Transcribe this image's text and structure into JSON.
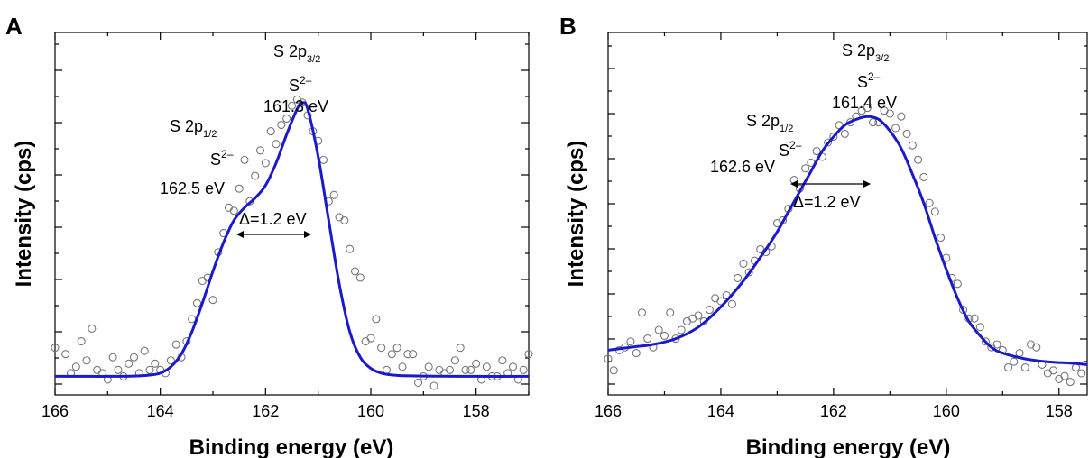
{
  "chart_data": [
    {
      "panel": "A",
      "type": "scatter",
      "xlabel": "Binding energy (eV)",
      "ylabel": "Intensity (cps)",
      "xlim": [
        166,
        157
      ],
      "x_reversed": true,
      "ylim": [
        0,
        1
      ],
      "x_ticks": [
        166,
        164,
        162,
        160,
        158
      ],
      "y_tick_labels": "none",
      "grid": false,
      "series": [
        {
          "kind": "points",
          "marker": "open-circle",
          "color": "#777777",
          "x": [
            166.0,
            165.8,
            165.7,
            165.6,
            165.5,
            165.4,
            165.3,
            165.2,
            165.1,
            165.0,
            164.9,
            164.8,
            164.7,
            164.6,
            164.5,
            164.4,
            164.3,
            164.2,
            164.1,
            164.0,
            163.9,
            163.8,
            163.7,
            163.6,
            163.5,
            163.4,
            163.3,
            163.2,
            163.1,
            163.0,
            162.9,
            162.8,
            162.7,
            162.6,
            162.5,
            162.4,
            162.3,
            162.2,
            162.1,
            162.0,
            161.9,
            161.8,
            161.7,
            161.6,
            161.5,
            161.4,
            161.3,
            161.2,
            161.1,
            161.0,
            160.9,
            160.8,
            160.7,
            160.6,
            160.5,
            160.4,
            160.3,
            160.2,
            160.1,
            160.0,
            159.9,
            159.8,
            159.7,
            159.6,
            159.5,
            159.4,
            159.3,
            159.2,
            159.1,
            159.0,
            158.9,
            158.8,
            158.7,
            158.6,
            158.5,
            158.4,
            158.3,
            158.2,
            158.1,
            158.0,
            157.9,
            157.8,
            157.7,
            157.6,
            157.5,
            157.4,
            157.3,
            157.2,
            157.1,
            157.0
          ],
          "y": [
            0.12,
            0.1,
            0.04,
            0.06,
            0.14,
            0.08,
            0.18,
            0.05,
            0.04,
            0.02,
            0.09,
            0.05,
            0.03,
            0.07,
            0.09,
            0.04,
            0.11,
            0.05,
            0.07,
            0.05,
            0.04,
            0.08,
            0.13,
            0.09,
            0.14,
            0.21,
            0.26,
            0.33,
            0.34,
            0.27,
            0.42,
            0.48,
            0.56,
            0.55,
            0.62,
            0.71,
            0.58,
            0.66,
            0.74,
            0.7,
            0.8,
            0.76,
            0.82,
            0.84,
            0.88,
            0.9,
            0.89,
            0.85,
            0.8,
            0.77,
            0.71,
            0.58,
            0.6,
            0.53,
            0.52,
            0.43,
            0.36,
            0.34,
            0.14,
            0.15,
            0.21,
            0.12,
            0.05,
            0.1,
            0.12,
            0.06,
            0.1,
            0.1,
            0.01,
            0.03,
            0.06,
            0.0,
            0.05,
            0.04,
            0.05,
            0.08,
            0.12,
            0.05,
            0.05,
            0.07,
            0.02,
            0.06,
            0.03,
            0.03,
            0.08,
            0.04,
            0.06,
            0.02,
            0.05,
            0.1
          ]
        },
        {
          "kind": "fit-line",
          "color": "#1a1acc",
          "x": [
            166.0,
            165.5,
            165.0,
            164.5,
            164.2,
            164.0,
            163.8,
            163.6,
            163.4,
            163.2,
            163.0,
            162.8,
            162.6,
            162.4,
            162.2,
            162.0,
            161.8,
            161.6,
            161.4,
            161.3,
            161.2,
            161.0,
            160.8,
            160.6,
            160.4,
            160.2,
            160.0,
            159.8,
            159.5,
            159.0,
            158.0,
            157.0
          ],
          "y": [
            0.03,
            0.03,
            0.03,
            0.031,
            0.034,
            0.04,
            0.06,
            0.1,
            0.17,
            0.26,
            0.36,
            0.45,
            0.52,
            0.56,
            0.59,
            0.63,
            0.7,
            0.79,
            0.87,
            0.889,
            0.87,
            0.72,
            0.52,
            0.32,
            0.17,
            0.09,
            0.055,
            0.04,
            0.033,
            0.031,
            0.03,
            0.03
          ]
        }
      ],
      "annotations": {
        "peak1": {
          "main": "S 2p",
          "sub": "3/2",
          "ion": "S",
          "charge": "2–",
          "energy": "161.3 eV"
        },
        "peak2": {
          "main": "S 2p",
          "sub": "1/2",
          "ion": "S",
          "charge": "2–",
          "energy": "162.5 eV"
        },
        "splitting": {
          "label": "Δ=1.2 eV",
          "from": 162.5,
          "to": 161.3
        }
      }
    },
    {
      "panel": "B",
      "type": "scatter",
      "xlabel": "Binding energy (eV)",
      "ylabel": "Intensity (cps)",
      "xlim": [
        166,
        157.5
      ],
      "x_reversed": true,
      "ylim": [
        0,
        1
      ],
      "x_ticks": [
        166,
        164,
        162,
        160,
        158
      ],
      "y_tick_labels": "none",
      "grid": false,
      "series": [
        {
          "kind": "points",
          "marker": "open-circle",
          "color": "#777777",
          "x": [
            166.0,
            165.9,
            165.8,
            165.7,
            165.6,
            165.5,
            165.4,
            165.3,
            165.2,
            165.1,
            165.0,
            164.9,
            164.8,
            164.7,
            164.6,
            164.5,
            164.4,
            164.3,
            164.2,
            164.1,
            164.0,
            163.9,
            163.8,
            163.7,
            163.6,
            163.5,
            163.4,
            163.3,
            163.2,
            163.1,
            163.0,
            162.9,
            162.8,
            162.7,
            162.6,
            162.5,
            162.4,
            162.3,
            162.2,
            162.1,
            162.0,
            161.9,
            161.8,
            161.7,
            161.6,
            161.5,
            161.4,
            161.3,
            161.2,
            161.1,
            161.0,
            160.9,
            160.8,
            160.7,
            160.6,
            160.5,
            160.4,
            160.3,
            160.2,
            160.1,
            160.0,
            159.9,
            159.8,
            159.7,
            159.6,
            159.5,
            159.4,
            159.3,
            159.2,
            159.1,
            159.0,
            158.9,
            158.8,
            158.7,
            158.6,
            158.5,
            158.4,
            158.3,
            158.2,
            158.1,
            158.0,
            157.9,
            157.8,
            157.7,
            157.6
          ],
          "y": [
            0.1,
            0.06,
            0.13,
            0.14,
            0.16,
            0.12,
            0.26,
            0.17,
            0.14,
            0.2,
            0.18,
            0.26,
            0.17,
            0.2,
            0.23,
            0.24,
            0.25,
            0.23,
            0.27,
            0.31,
            0.3,
            0.32,
            0.29,
            0.38,
            0.43,
            0.4,
            0.44,
            0.48,
            0.47,
            0.49,
            0.57,
            0.58,
            0.62,
            0.72,
            0.69,
            0.76,
            0.78,
            0.82,
            0.8,
            0.85,
            0.87,
            0.91,
            0.88,
            0.92,
            0.94,
            0.96,
            0.97,
            0.92,
            0.92,
            0.96,
            0.95,
            0.9,
            0.94,
            0.88,
            0.84,
            0.79,
            0.73,
            0.64,
            0.61,
            0.52,
            0.45,
            0.38,
            0.36,
            0.27,
            0.24,
            0.24,
            0.21,
            0.16,
            0.14,
            0.15,
            0.13,
            0.07,
            0.09,
            0.12,
            0.07,
            0.15,
            0.14,
            0.08,
            0.05,
            0.06,
            0.03,
            0.04,
            0.02,
            0.07,
            0.05
          ]
        },
        {
          "kind": "fit-line",
          "color": "#1a1acc",
          "x": [
            166.0,
            165.6,
            165.2,
            164.8,
            164.4,
            164.0,
            163.6,
            163.2,
            163.0,
            162.8,
            162.6,
            162.4,
            162.2,
            162.0,
            161.8,
            161.6,
            161.4,
            161.2,
            161.0,
            160.8,
            160.6,
            160.4,
            160.2,
            160.0,
            159.8,
            159.6,
            159.4,
            159.2,
            159.0,
            158.6,
            158.2,
            157.8,
            157.5
          ],
          "y": [
            0.13,
            0.14,
            0.15,
            0.17,
            0.21,
            0.28,
            0.37,
            0.48,
            0.54,
            0.61,
            0.68,
            0.75,
            0.82,
            0.87,
            0.91,
            0.93,
            0.94,
            0.93,
            0.89,
            0.83,
            0.74,
            0.64,
            0.52,
            0.41,
            0.31,
            0.23,
            0.18,
            0.14,
            0.12,
            0.1,
            0.09,
            0.085,
            0.08
          ]
        }
      ],
      "annotations": {
        "peak1": {
          "main": "S 2p",
          "sub": "3/2",
          "ion": "S",
          "charge": "2–",
          "energy": "161.4 eV"
        },
        "peak2": {
          "main": "S 2p",
          "sub": "1/2",
          "ion": "S",
          "charge": "2–",
          "energy": "162.6 eV"
        },
        "splitting": {
          "label": "Δ=1.2 eV",
          "from": 162.6,
          "to": 161.4
        }
      }
    }
  ]
}
